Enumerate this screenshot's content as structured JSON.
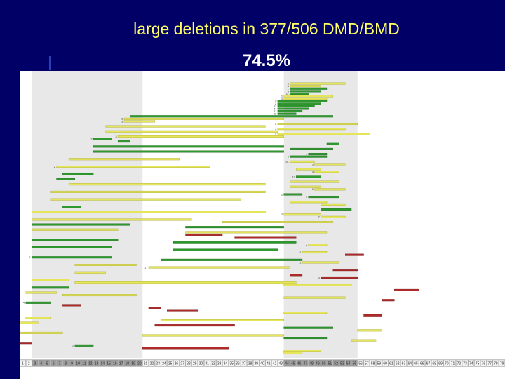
{
  "title": "large deletions in 377/506 DMD/BMD",
  "subtitle": "74.5%",
  "colors": {
    "background": "#000066",
    "title": "#ffff66",
    "subtitle": "#ffffff",
    "panel": "#ffffff",
    "hotspot": "#e8e8e8",
    "yellow": "#e6e65a",
    "green": "#2e9a2e",
    "red": "#b02a2a"
  },
  "chart_data": {
    "type": "bar",
    "orientation": "horizontal",
    "x_axis": "exon",
    "exon_labels": [
      "1",
      "2",
      "3",
      "4",
      "5",
      "6",
      "7",
      "8",
      "9",
      "10",
      "11",
      "12",
      "13",
      "14",
      "15",
      "16",
      "17",
      "18",
      "19",
      "20",
      "21",
      "22",
      "23",
      "24",
      "25",
      "26",
      "27",
      "28",
      "29",
      "30",
      "31",
      "32",
      "33",
      "34",
      "35",
      "36",
      "37",
      "38",
      "39",
      "40",
      "41",
      "42",
      "43",
      "44",
      "45",
      "46",
      "47",
      "48",
      "49",
      "50",
      "51",
      "52",
      "53",
      "54",
      "55",
      "56",
      "57",
      "58",
      "59",
      "60",
      "61",
      "62",
      "63",
      "64",
      "65",
      "66",
      "67",
      "68",
      "69",
      "70",
      "71",
      "72",
      "73",
      "74",
      "75",
      "76",
      "77",
      "78",
      "79"
    ],
    "hotspots": [
      [
        3,
        20
      ],
      [
        44,
        55
      ]
    ],
    "deletions": [
      {
        "start": 45,
        "end": 53,
        "color": "yellow",
        "label": "4"
      },
      {
        "start": 45,
        "end": 49,
        "color": "yellow",
        "label": "4"
      },
      {
        "start": 45,
        "end": 50,
        "color": "green",
        "label": "1"
      },
      {
        "start": 45,
        "end": 49,
        "color": "green",
        "label": "5"
      },
      {
        "start": 45,
        "end": 47,
        "color": "green",
        "label": "11"
      },
      {
        "start": 44,
        "end": 51,
        "color": "yellow",
        "label": "1"
      },
      {
        "start": 44,
        "end": 50,
        "color": "yellow",
        "label": "1"
      },
      {
        "start": 43,
        "end": 50,
        "color": "green",
        "label": "9"
      },
      {
        "start": 43,
        "end": 49,
        "color": "green",
        "label": "2"
      },
      {
        "start": 43,
        "end": 48,
        "color": "green",
        "label": "11"
      },
      {
        "start": 43,
        "end": 47,
        "color": "green",
        "label": "24"
      },
      {
        "start": 43,
        "end": 46,
        "color": "green",
        "label": "11"
      },
      {
        "start": 43,
        "end": 45,
        "color": "green",
        "label": "23"
      },
      {
        "start": 19,
        "end": 51,
        "color": "green",
        "label": ""
      },
      {
        "start": 18,
        "end": 43,
        "color": "yellow",
        "label": "3"
      },
      {
        "start": 18,
        "end": 22,
        "color": "yellow",
        "label": "3"
      },
      {
        "start": 43,
        "end": 55,
        "color": "yellow",
        "label": "2"
      },
      {
        "start": 15,
        "end": 40,
        "color": "yellow",
        "label": ""
      },
      {
        "start": 43,
        "end": 53,
        "color": "yellow",
        "label": "2"
      },
      {
        "start": 15,
        "end": 42,
        "color": "yellow",
        "label": ""
      },
      {
        "start": 43,
        "end": 57,
        "color": "yellow",
        "label": "2"
      },
      {
        "start": 17,
        "end": 43,
        "color": "yellow",
        "label": "3"
      },
      {
        "start": 13,
        "end": 15,
        "color": "green",
        "label": "2"
      },
      {
        "start": 17,
        "end": 18,
        "color": "green",
        "label": ""
      },
      {
        "start": 51,
        "end": 52,
        "color": "green",
        "label": ""
      },
      {
        "start": 13,
        "end": 43,
        "color": "green",
        "label": ""
      },
      {
        "start": 45,
        "end": 51,
        "color": "green",
        "label": ""
      },
      {
        "start": 13,
        "end": 43,
        "color": "green",
        "label": ""
      },
      {
        "start": 48,
        "end": 50,
        "color": "green",
        "label": "4"
      },
      {
        "start": 45,
        "end": 50,
        "color": "green",
        "label": "4"
      },
      {
        "start": 9,
        "end": 26,
        "color": "yellow",
        "label": ""
      },
      {
        "start": 45,
        "end": 48,
        "color": "yellow",
        "label": "51"
      },
      {
        "start": 49,
        "end": 53,
        "color": "yellow",
        "label": "3"
      },
      {
        "start": 7,
        "end": 31,
        "color": "yellow",
        "label": "2"
      },
      {
        "start": 46,
        "end": 49,
        "color": "yellow",
        "label": ""
      },
      {
        "start": 49,
        "end": 52,
        "color": "yellow",
        "label": "3"
      },
      {
        "start": 8,
        "end": 12,
        "color": "green",
        "label": ""
      },
      {
        "start": 46,
        "end": 49,
        "color": "green",
        "label": "13"
      },
      {
        "start": 7,
        "end": 9,
        "color": "green",
        "label": ""
      },
      {
        "start": 45,
        "end": 52,
        "color": "yellow",
        "label": ""
      },
      {
        "start": 9,
        "end": 40,
        "color": "yellow",
        "label": ""
      },
      {
        "start": 45,
        "end": 49,
        "color": "yellow",
        "label": ""
      },
      {
        "start": 49,
        "end": 53,
        "color": "yellow",
        "label": "1"
      },
      {
        "start": 6,
        "end": 40,
        "color": "yellow",
        "label": ""
      },
      {
        "start": 44,
        "end": 46,
        "color": "green",
        "label": "2"
      },
      {
        "start": 48,
        "end": 52,
        "color": "green",
        "label": "3"
      },
      {
        "start": 6,
        "end": 36,
        "color": "yellow",
        "label": ""
      },
      {
        "start": 45,
        "end": 50,
        "color": "yellow",
        "label": ""
      },
      {
        "start": 50,
        "end": 53,
        "color": "yellow",
        "label": ""
      },
      {
        "start": 8,
        "end": 10,
        "color": "green",
        "label": ""
      },
      {
        "start": 50,
        "end": 54,
        "color": "green",
        "label": ""
      },
      {
        "start": 3,
        "end": 40,
        "color": "yellow",
        "label": ""
      },
      {
        "start": 44,
        "end": 49,
        "color": "yellow",
        "label": "2"
      },
      {
        "start": 50,
        "end": 53,
        "color": "yellow",
        "label": "2"
      },
      {
        "start": 3,
        "end": 28,
        "color": "yellow",
        "label": ""
      },
      {
        "start": 34,
        "end": 51,
        "color": "yellow",
        "label": ""
      },
      {
        "start": 3,
        "end": 18,
        "color": "green",
        "label": ""
      },
      {
        "start": 28,
        "end": 43,
        "color": "green",
        "label": ""
      },
      {
        "start": 3,
        "end": 16,
        "color": "yellow",
        "label": ""
      },
      {
        "start": 28,
        "end": 50,
        "color": "yellow",
        "label": ""
      },
      {
        "start": 28,
        "end": 33,
        "color": "red",
        "label": ""
      },
      {
        "start": 36,
        "end": 45,
        "color": "red",
        "label": ""
      },
      {
        "start": 3,
        "end": 16,
        "color": "green",
        "label": ""
      },
      {
        "start": 26,
        "end": 45,
        "color": "green",
        "label": ""
      },
      {
        "start": 48,
        "end": 50,
        "color": "yellow",
        "label": "2"
      },
      {
        "start": 3,
        "end": 15,
        "color": "green",
        "label": ""
      },
      {
        "start": 26,
        "end": 42,
        "color": "green",
        "label": ""
      },
      {
        "start": 47,
        "end": 50,
        "color": "yellow",
        "label": "1"
      },
      {
        "start": 54,
        "end": 56,
        "color": "red",
        "label": ""
      },
      {
        "start": 3,
        "end": 15,
        "color": "green",
        "label": "1"
      },
      {
        "start": 24,
        "end": 46,
        "color": "green",
        "label": ""
      },
      {
        "start": 47,
        "end": 52,
        "color": "yellow",
        "label": "1"
      },
      {
        "start": 10,
        "end": 19,
        "color": "yellow",
        "label": ""
      },
      {
        "start": 22,
        "end": 44,
        "color": "yellow",
        "label": "17"
      },
      {
        "start": 52,
        "end": 55,
        "color": "red",
        "label": ""
      },
      {
        "start": 10,
        "end": 14,
        "color": "yellow",
        "label": ""
      },
      {
        "start": 45,
        "end": 46,
        "color": "red",
        "label": ""
      },
      {
        "start": 50,
        "end": 55,
        "color": "red",
        "label": "3"
      },
      {
        "start": 3,
        "end": 8,
        "color": "yellow",
        "label": ""
      },
      {
        "start": 10,
        "end": 45,
        "color": "yellow",
        "label": ""
      },
      {
        "start": 44,
        "end": 54,
        "color": "yellow",
        "label": ""
      },
      {
        "start": 3,
        "end": 8,
        "color": "green",
        "label": ""
      },
      {
        "start": 62,
        "end": 65,
        "color": "red",
        "label": ""
      },
      {
        "start": 2,
        "end": 6,
        "color": "yellow",
        "label": ""
      },
      {
        "start": 8,
        "end": 19,
        "color": "yellow",
        "label": ""
      },
      {
        "start": 44,
        "end": 53,
        "color": "yellow",
        "label": ""
      },
      {
        "start": 60,
        "end": 61,
        "color": "red",
        "label": ""
      },
      {
        "start": 2,
        "end": 5,
        "color": "green",
        "label": "4"
      },
      {
        "start": 8,
        "end": 10,
        "color": "red",
        "label": ""
      },
      {
        "start": 22,
        "end": 23,
        "color": "red",
        "label": ""
      },
      {
        "start": 25,
        "end": 29,
        "color": "red",
        "label": ""
      },
      {
        "start": 44,
        "end": 50,
        "color": "yellow",
        "label": ""
      },
      {
        "start": 57,
        "end": 59,
        "color": "red",
        "label": ""
      },
      {
        "start": 2,
        "end": 5,
        "color": "yellow",
        "label": ""
      },
      {
        "start": 24,
        "end": 43,
        "color": "yellow",
        "label": ""
      },
      {
        "start": 1,
        "end": 3,
        "color": "yellow",
        "label": "4"
      },
      {
        "start": 23,
        "end": 35,
        "color": "red",
        "label": ""
      },
      {
        "start": 44,
        "end": 51,
        "color": "green",
        "label": ""
      },
      {
        "start": 56,
        "end": 59,
        "color": "yellow",
        "label": ""
      },
      {
        "start": 1,
        "end": 7,
        "color": "yellow",
        "label": ""
      },
      {
        "start": 21,
        "end": 43,
        "color": "yellow",
        "label": ""
      },
      {
        "start": 44,
        "end": 50,
        "color": "green",
        "label": ""
      },
      {
        "start": 55,
        "end": 58,
        "color": "yellow",
        "label": ""
      },
      {
        "start": 1,
        "end": 2,
        "color": "red",
        "label": ""
      },
      {
        "start": 10,
        "end": 12,
        "color": "green",
        "label": "2"
      },
      {
        "start": 21,
        "end": 34,
        "color": "red",
        "label": ""
      },
      {
        "start": 44,
        "end": 49,
        "color": "yellow",
        "label": ""
      },
      {
        "start": 44,
        "end": 46,
        "color": "yellow",
        "label": ""
      }
    ]
  }
}
